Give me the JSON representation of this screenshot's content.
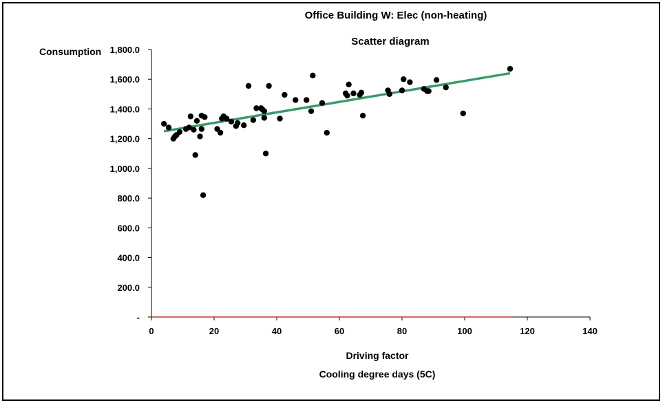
{
  "chart_data": {
    "type": "scatter",
    "title": "Office Building W: Elec (non-heating)",
    "subtitle": "Scatter diagram",
    "xlabel": "Driving factor",
    "xlabel2": "Cooling degree days (5C)",
    "ylabel": "Consumption",
    "xlim": [
      0,
      140
    ],
    "ylim": [
      0,
      1800
    ],
    "x_ticks": [
      0,
      20,
      40,
      60,
      80,
      100,
      120,
      140
    ],
    "x_tick_labels": [
      "0",
      "20",
      "40",
      "60",
      "80",
      "100",
      "120",
      "140"
    ],
    "y_ticks": [
      0,
      200,
      400,
      600,
      800,
      1000,
      1200,
      1400,
      1600,
      1800
    ],
    "y_tick_labels": [
      "-",
      "200.0",
      "400.0",
      "600.0",
      "800.0",
      "1,000.0",
      "1,200.0",
      "1,400.0",
      "1,600.0",
      "1,800.0"
    ],
    "grid": false,
    "colors": {
      "points": "#000000",
      "trendline": "#3a9a6a",
      "baseline": "#c0392b"
    },
    "trendline": {
      "x": [
        4,
        114.5
      ],
      "y": [
        1250,
        1640
      ]
    },
    "baseline": {
      "x": [
        0,
        114.5
      ],
      "y": [
        0,
        0
      ]
    },
    "points": [
      [
        4,
        1300
      ],
      [
        5.5,
        1275
      ],
      [
        7,
        1200
      ],
      [
        7.5,
        1215
      ],
      [
        8,
        1225
      ],
      [
        9,
        1245
      ],
      [
        11,
        1265
      ],
      [
        12,
        1275
      ],
      [
        12.5,
        1350
      ],
      [
        13.5,
        1260
      ],
      [
        14,
        1090
      ],
      [
        14.5,
        1320
      ],
      [
        15.5,
        1215
      ],
      [
        16,
        1265
      ],
      [
        16,
        1355
      ],
      [
        16.5,
        820
      ],
      [
        17,
        1345
      ],
      [
        21,
        1265
      ],
      [
        22,
        1240
      ],
      [
        22.5,
        1335
      ],
      [
        23,
        1350
      ],
      [
        23.5,
        1340
      ],
      [
        24,
        1335
      ],
      [
        25.5,
        1315
      ],
      [
        27,
        1285
      ],
      [
        27.5,
        1305
      ],
      [
        29.5,
        1290
      ],
      [
        31,
        1555
      ],
      [
        32.5,
        1325
      ],
      [
        33.5,
        1405
      ],
      [
        35,
        1405
      ],
      [
        35.5,
        1395
      ],
      [
        36,
        1385
      ],
      [
        36,
        1340
      ],
      [
        36.5,
        1100
      ],
      [
        37.5,
        1555
      ],
      [
        41,
        1335
      ],
      [
        42.5,
        1495
      ],
      [
        46,
        1460
      ],
      [
        49.5,
        1460
      ],
      [
        51,
        1385
      ],
      [
        51.5,
        1625
      ],
      [
        54.5,
        1440
      ],
      [
        56,
        1240
      ],
      [
        62,
        1505
      ],
      [
        62.5,
        1490
      ],
      [
        63,
        1565
      ],
      [
        64.5,
        1505
      ],
      [
        66.5,
        1495
      ],
      [
        67,
        1510
      ],
      [
        67.5,
        1355
      ],
      [
        75.5,
        1525
      ],
      [
        76,
        1500
      ],
      [
        80,
        1525
      ],
      [
        80.5,
        1600
      ],
      [
        82.5,
        1580
      ],
      [
        87,
        1535
      ],
      [
        88,
        1520
      ],
      [
        88.5,
        1520
      ],
      [
        91,
        1595
      ],
      [
        94,
        1545
      ],
      [
        99.5,
        1370
      ],
      [
        114.5,
        1670
      ]
    ]
  }
}
